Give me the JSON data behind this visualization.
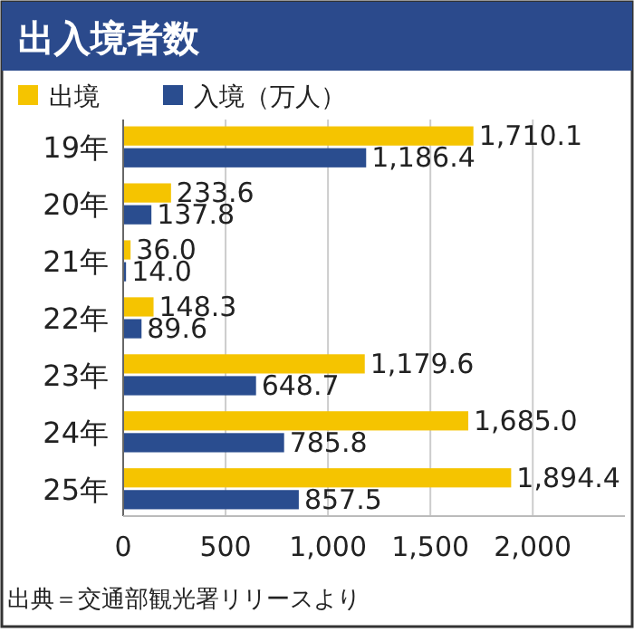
{
  "chart_data": {
    "type": "bar",
    "orientation": "horizontal",
    "title": "出入境者数",
    "categories": [
      "19年",
      "20年",
      "21年",
      "22年",
      "23年",
      "24年",
      "25年"
    ],
    "series": [
      {
        "name": "出境",
        "color": "#f5c400",
        "values": [
          1710.1,
          233.6,
          36.0,
          148.3,
          1179.6,
          1685.0,
          1894.4
        ],
        "value_labels": [
          "1,710.1",
          "233.6",
          "36.0",
          "148.3",
          "1,179.6",
          "1,685.0",
          "1,894.4"
        ]
      },
      {
        "name": "入境（万人）",
        "color": "#2a4d8f",
        "values": [
          1186.4,
          137.8,
          14.0,
          89.6,
          648.7,
          785.8,
          857.5
        ],
        "value_labels": [
          "1,186.4",
          "137.8",
          "14.0",
          "89.6",
          "648.7",
          "785.8",
          "857.5"
        ]
      }
    ],
    "xlim": [
      0,
      2450
    ],
    "xticks": [
      0,
      500,
      {
        "value": 1000,
        "label": "1,000"
      },
      {
        "value": 1500,
        "label": "1,500"
      },
      {
        "value": 2000,
        "label": "2,000"
      }
    ],
    "grid": "x",
    "legend": "top left",
    "annotations": [
      "出典＝交通部観光署リリースより"
    ]
  }
}
